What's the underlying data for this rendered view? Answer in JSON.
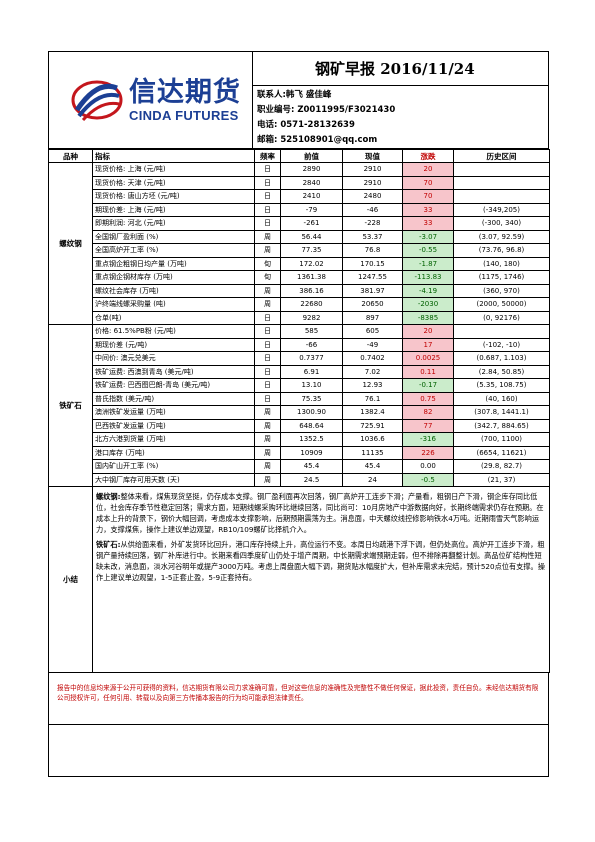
{
  "header": {
    "logo_cn": "信达期货",
    "logo_en": "CINDA FUTURES",
    "title": "钢矿早报 2016/11/24",
    "contact": "联系人:韩飞 盛佳峰",
    "license": "职业编号: Z0011995/F3021430",
    "phone": "电话: 0571-28132639",
    "email": "邮箱: 525108901@qq.com"
  },
  "table": {
    "headers": [
      "品种",
      "指标",
      "频率",
      "前值",
      "现值",
      "涨跌",
      "历史区间"
    ],
    "group1": {
      "name": "螺纹钢",
      "rows": [
        {
          "ind": "现货价格: 上海 (元/吨)",
          "freq": "日",
          "prev": "2890",
          "cur": "2910",
          "chg": "20",
          "range": "",
          "dir": "pos"
        },
        {
          "ind": "现货价格: 天津 (元/吨)",
          "freq": "日",
          "prev": "2840",
          "cur": "2910",
          "chg": "70",
          "range": "",
          "dir": "pos"
        },
        {
          "ind": "现货价格: 唐山方坯 (元/吨)",
          "freq": "日",
          "prev": "2410",
          "cur": "2480",
          "chg": "70",
          "range": "",
          "dir": "pos"
        },
        {
          "ind": "期现价差: 上海 (元/吨)",
          "freq": "日",
          "prev": "-79",
          "cur": "-46",
          "chg": "33",
          "range": "(-349,205)",
          "dir": "pos"
        },
        {
          "ind": "即期利润: 河北 (元/吨)",
          "freq": "日",
          "prev": "-261",
          "cur": "-228",
          "chg": "33",
          "range": "(-300, 340)",
          "dir": "pos"
        },
        {
          "ind": "全国钢厂盈利面 (%)",
          "freq": "周",
          "prev": "56.44",
          "cur": "53.37",
          "chg": "-3.07",
          "range": "(3.07, 92.59)",
          "dir": "neg"
        },
        {
          "ind": "全国高炉开工率 (%)",
          "freq": "周",
          "prev": "77.35",
          "cur": "76.8",
          "chg": "-0.55",
          "range": "(73.76, 96.8)",
          "dir": "neg"
        },
        {
          "ind": "重点钢企粗钢日均产量 (万吨)",
          "freq": "旬",
          "prev": "172.02",
          "cur": "170.15",
          "chg": "-1.87",
          "range": "(140, 180)",
          "dir": "neg"
        },
        {
          "ind": "重点钢企钢材库存 (万吨)",
          "freq": "旬",
          "prev": "1361.38",
          "cur": "1247.55",
          "chg": "-113.83",
          "range": "(1175, 1746)",
          "dir": "neg"
        },
        {
          "ind": "螺纹社会库存 (万吨)",
          "freq": "周",
          "prev": "386.16",
          "cur": "381.97",
          "chg": "-4.19",
          "range": "(360, 970)",
          "dir": "neg"
        },
        {
          "ind": "沪终端线螺采购量 (吨)",
          "freq": "周",
          "prev": "22680",
          "cur": "20650",
          "chg": "-2030",
          "range": "(2000, 50000)",
          "dir": "neg"
        },
        {
          "ind": "仓单(吨)",
          "freq": "日",
          "prev": "9282",
          "cur": "897",
          "chg": "-8385",
          "range": "(0, 92176)",
          "dir": "neg"
        }
      ]
    },
    "group2": {
      "name": "铁矿石",
      "rows": [
        {
          "ind": "价格: 61.5%PB粉 (元/吨)",
          "freq": "日",
          "prev": "585",
          "cur": "605",
          "chg": "20",
          "range": "",
          "dir": "pos"
        },
        {
          "ind": "期现价差 (元/吨)",
          "freq": "日",
          "prev": "-66",
          "cur": "-49",
          "chg": "17",
          "range": "(-102, -10)",
          "dir": "pos"
        },
        {
          "ind": "中间价: 澳元兑美元",
          "freq": "日",
          "prev": "0.7377",
          "cur": "0.7402",
          "chg": "0.0025",
          "range": "(0.687, 1.103)",
          "dir": "pos"
        },
        {
          "ind": "铁矿运费: 西澳到青岛 (美元/吨)",
          "freq": "日",
          "prev": "6.91",
          "cur": "7.02",
          "chg": "0.11",
          "range": "(2.84, 50.85)",
          "dir": "pos"
        },
        {
          "ind": "铁矿运费: 巴西图巴朗-青岛 (美元/吨)",
          "freq": "日",
          "prev": "13.10",
          "cur": "12.93",
          "chg": "-0.17",
          "range": "(5.35, 108.75)",
          "dir": "neg"
        },
        {
          "ind": "普氏指数 (美元/吨)",
          "freq": "日",
          "prev": "75.35",
          "cur": "76.1",
          "chg": "0.75",
          "range": "(40, 160)",
          "dir": "pos"
        },
        {
          "ind": "澳洲铁矿发运量 (万吨)",
          "freq": "周",
          "prev": "1300.90",
          "cur": "1382.4",
          "chg": "82",
          "range": "(307.8, 1441.1)",
          "dir": "pos"
        },
        {
          "ind": "巴西铁矿发运量 (万吨)",
          "freq": "周",
          "prev": "648.64",
          "cur": "725.91",
          "chg": "77",
          "range": "(342.7, 884.65)",
          "dir": "pos"
        },
        {
          "ind": "北方六港到货量 (万吨)",
          "freq": "周",
          "prev": "1352.5",
          "cur": "1036.6",
          "chg": "-316",
          "range": "(700, 1100)",
          "dir": "neg"
        },
        {
          "ind": "港口库存 (万吨)",
          "freq": "周",
          "prev": "10909",
          "cur": "11135",
          "chg": "226",
          "range": "(6654, 11621)",
          "dir": "pos"
        },
        {
          "ind": "国内矿山开工率 (%)",
          "freq": "周",
          "prev": "45.4",
          "cur": "45.4",
          "chg": "0.00",
          "range": "(29.8, 82.7)",
          "dir": "neu"
        },
        {
          "ind": "大中钢厂库存可用天数 (天)",
          "freq": "周",
          "prev": "24.5",
          "cur": "24",
          "chg": "-0.5",
          "range": "(21, 37)",
          "dir": "neg"
        }
      ]
    }
  },
  "summary": {
    "label": "小结",
    "rebar_title": "螺纹钢:",
    "rebar_text": "整体来看，煤焦现货坚挺，仍存成本支撑。钢厂盈利面再次回落，钢厂高炉开工连步下滑；产量看，粗钢日产下滑，钢企库存同比低位，社会库存季节性稳定回落；需求方面，短期线螺采购环比继续回落，同比尚可：10月房地产中游数据向好，长期终端需求仍存在预期。在成本上升的背景下，钢价大幅回调，考虑成本支撑影响，后期预期震荡为主。消息面，中天螺纹线控修影响铁水4万吨。近期雨雪天气影响运力，支撑煤焦，操作上建议单边观望，RB10/109螺矿比择机介入。",
    "ore_title": "铁矿石:",
    "ore_text": "从供给面来看，外矿发货环比回升，港口库存持续上升，高位运行不变。本周日均疏港下浮下调，但仍处高位。高炉开工连步下滑，粗钢产量持续回落，钢厂补库进行中。长期来看四季度矿山仍处于增产周期，中长期需求端预期走弱，但不排除再翻整计划。高品位矿结构性短缺未改，消息面，淡水河谷明年或提产3000万吨。考虑上周盘面大幅下调，期货贴水幅度扩大，但补库需求未完结，预计520点位有支撑。操作上建议单边观望，1-5正套止盈，5-9正套持有。"
  },
  "disclaimer": "报告中的信息均来源于公开可获得的资料，信达期货有限公司力求准确可靠，但对这些信息的准确性及完整性不做任何保证，据此投资，责任自负。未经信达期货有限公司授权许可，任何引用、转载以及向第三方传播本报告的行为均可能承担法律责任。"
}
